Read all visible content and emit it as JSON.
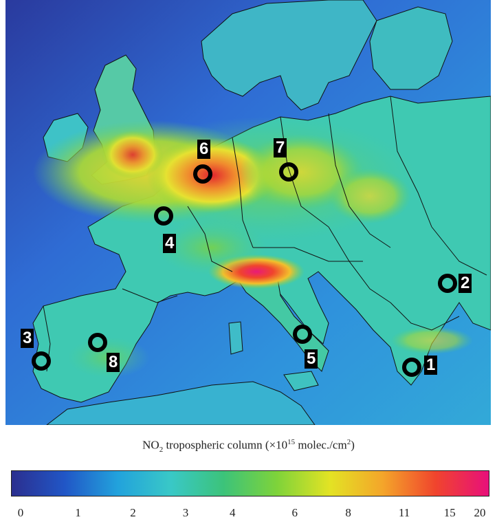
{
  "legend": {
    "title_prefix": "NO",
    "title_sub": "2",
    "title_mid": " tropospheric column (×10",
    "title_exp": "15",
    "title_unit": " molec./cm",
    "title_unit_exp": "2",
    "title_end": ")",
    "ticks": [
      "0",
      "1",
      "2",
      "3",
      "4",
      "6",
      "8",
      "11",
      "15",
      "20"
    ],
    "colors": [
      "#2b2f8f",
      "#2156c6",
      "#22a2dc",
      "#39c8c7",
      "#3cc37a",
      "#7ed33a",
      "#e3e324",
      "#f4a52a",
      "#f0442d",
      "#e8107b"
    ]
  },
  "sites": [
    {
      "label": "1"
    },
    {
      "label": "2"
    },
    {
      "label": "3"
    },
    {
      "label": "4"
    },
    {
      "label": "5"
    },
    {
      "label": "6"
    },
    {
      "label": "7"
    },
    {
      "label": "8"
    }
  ],
  "map": {
    "ocean_color": "#2b5bd0",
    "land_color": "#40c9b6",
    "hotspot_colors": [
      "#f2e52c",
      "#f08a2e",
      "#e2242e",
      "#e81b78"
    ]
  }
}
